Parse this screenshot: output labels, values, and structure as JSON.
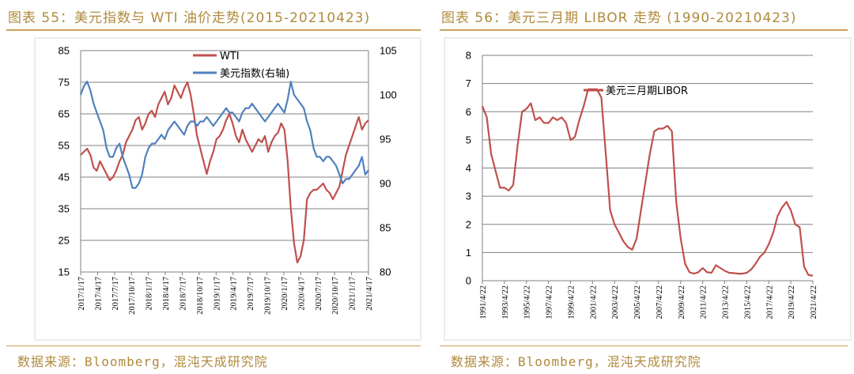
{
  "left": {
    "title": "图表 55：美元指数与 WTI 油价走势(2015-20210423)",
    "source": "数据来源：Bloomberg，混沌天成研究院",
    "chart_data": {
      "type": "line",
      "ylim_left": [
        15,
        85
      ],
      "ylim_right": [
        80,
        105
      ],
      "yticks_left": [
        "85",
        "75",
        "65",
        "55",
        "45",
        "35",
        "25",
        "15"
      ],
      "yticks_right": [
        "105",
        "100",
        "95",
        "90",
        "85",
        "80"
      ],
      "xticks": [
        "2017/1/17",
        "2017/4/17",
        "2017/7/17",
        "2017/10/17",
        "2018/1/17",
        "2018/4/17",
        "2018/7/17",
        "2018/10/17",
        "2019/1/17",
        "2019/4/17",
        "2019/7/17",
        "2019/10/17",
        "2020/1/17",
        "2020/4/17",
        "2020/7/17",
        "2020/10/17",
        "2021/1/17",
        "2021/4/17"
      ],
      "grid": true,
      "legend_position": "top-center",
      "series": [
        {
          "name": "WTI",
          "axis": "left",
          "color": "#c0504d",
          "values": [
            52,
            53,
            54,
            52,
            48,
            47,
            50,
            48,
            46,
            44,
            45,
            47,
            50,
            52,
            56,
            58,
            60,
            63,
            64,
            60,
            62,
            65,
            66,
            64,
            68,
            70,
            72,
            68,
            70,
            74,
            72,
            70,
            73,
            75,
            71,
            65,
            58,
            54,
            50,
            46,
            50,
            53,
            57,
            58,
            60,
            63,
            65,
            62,
            58,
            56,
            60,
            57,
            55,
            53,
            55,
            57,
            56,
            58,
            53,
            56,
            58,
            59,
            62,
            60,
            50,
            35,
            24,
            18,
            20,
            25,
            38,
            40,
            41,
            41,
            42,
            43,
            41,
            40,
            38,
            40,
            42,
            47,
            52,
            55,
            58,
            61,
            64,
            60,
            62,
            63
          ]
        },
        {
          "name": "美元指数(右轴)",
          "axis": "right",
          "color": "#4f81bd",
          "values": [
            100,
            101,
            101.5,
            100.5,
            99,
            98,
            97,
            96,
            94,
            93,
            93,
            94,
            94.5,
            93,
            92,
            91,
            89.5,
            89.5,
            90,
            91,
            93,
            94,
            94.5,
            94.5,
            95,
            95.5,
            95,
            96,
            96.5,
            97,
            96.5,
            96,
            95.5,
            96.5,
            97,
            97,
            96.5,
            97,
            97,
            97.5,
            97,
            96.5,
            97,
            97.5,
            98,
            98.5,
            98,
            98,
            97.5,
            97,
            98,
            98.5,
            98.5,
            99,
            98.5,
            98,
            97.5,
            97,
            97.5,
            98,
            98.5,
            99,
            98.5,
            98,
            99.5,
            101.5,
            100,
            99.5,
            99,
            98.5,
            97,
            96,
            94,
            93,
            93,
            92.5,
            93,
            93,
            92.5,
            92,
            91,
            90,
            90.5,
            90.5,
            91,
            91.5,
            92,
            93,
            91,
            91.5
          ]
        }
      ]
    }
  },
  "right": {
    "title": "图表 56：美元三月期 LIBOR 走势 (1990-20210423)",
    "source": "数据来源：Bloomberg，混沌天成研究院",
    "chart_data": {
      "type": "line",
      "ylim": [
        0,
        8
      ],
      "yticks": [
        "8",
        "7",
        "6",
        "5",
        "4",
        "3",
        "2",
        "1",
        "0"
      ],
      "xticks": [
        "1991/4/22",
        "1993/4/22",
        "1995/4/22",
        "1997/4/22",
        "1999/4/22",
        "2001/4/22",
        "2003/4/22",
        "2005/4/22",
        "2007/4/22",
        "2009/4/22",
        "2011/4/22",
        "2013/4/22",
        "2015/4/22",
        "2017/4/22",
        "2019/4/22",
        "2021/4/22"
      ],
      "grid": true,
      "legend_position": "top-center",
      "series": [
        {
          "name": "美元三月期LIBOR",
          "color": "#c0504d",
          "values": [
            6.2,
            5.8,
            4.5,
            3.9,
            3.3,
            3.3,
            3.2,
            3.4,
            4.8,
            6.0,
            6.1,
            6.3,
            5.7,
            5.8,
            5.6,
            5.6,
            5.8,
            5.7,
            5.8,
            5.6,
            5.0,
            5.1,
            5.7,
            6.2,
            6.8,
            6.8,
            6.8,
            6.5,
            4.5,
            2.5,
            2.0,
            1.7,
            1.4,
            1.2,
            1.1,
            1.5,
            2.5,
            3.5,
            4.5,
            5.3,
            5.4,
            5.4,
            5.5,
            5.3,
            2.8,
            1.5,
            0.6,
            0.3,
            0.25,
            0.3,
            0.45,
            0.3,
            0.28,
            0.55,
            0.45,
            0.35,
            0.28,
            0.27,
            0.25,
            0.25,
            0.28,
            0.4,
            0.6,
            0.85,
            1.0,
            1.3,
            1.7,
            2.3,
            2.6,
            2.8,
            2.5,
            2.0,
            1.9,
            0.5,
            0.2,
            0.18
          ]
        }
      ]
    }
  }
}
